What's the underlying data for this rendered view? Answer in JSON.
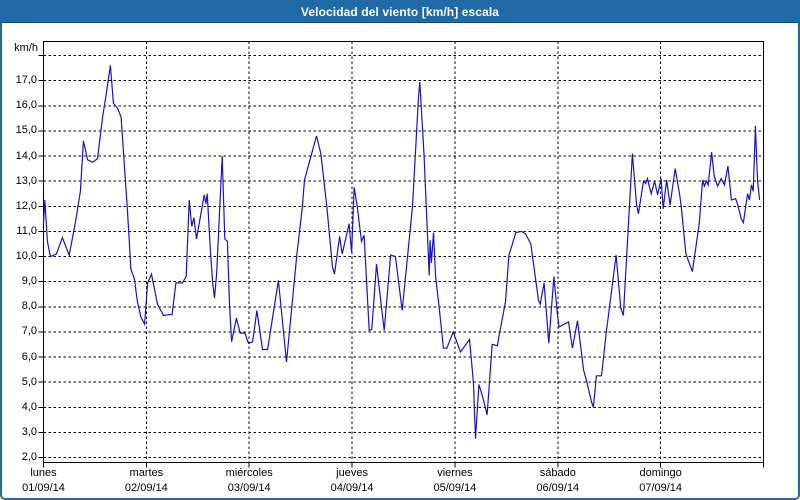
{
  "window": {
    "title": "Velocidad del viento [km/h] escala",
    "title_bar_color": "#1f6aa7",
    "border_color": "#1f6aa7",
    "background_color": "#ffffff"
  },
  "chart_data": {
    "type": "line",
    "title": "Velocidad del viento [km/h] escala",
    "ylabel": "km/h",
    "xlabel": "",
    "line_color": "#1414c8",
    "grid_color": "#000000",
    "grid_style": "dashed",
    "legend": "none",
    "ylim": [
      2,
      18
    ],
    "ytick_step": 1,
    "ytick_labels": [
      "2,0",
      "3,0",
      "4,0",
      "5,0",
      "6,0",
      "7,0",
      "8,0",
      "9,0",
      "10,0",
      "11,0",
      "12,0",
      "13,0",
      "14,0",
      "15,0",
      "16,0",
      "17,0"
    ],
    "x_days": [
      {
        "name": "lunes",
        "date": "01/09/14"
      },
      {
        "name": "martes",
        "date": "02/09/14"
      },
      {
        "name": "miércoles",
        "date": "03/09/14"
      },
      {
        "name": "jueves",
        "date": "04/09/14"
      },
      {
        "name": "viernes",
        "date": "05/09/14"
      },
      {
        "name": "sábado",
        "date": "06/09/14"
      },
      {
        "name": "domingo",
        "date": "07/09/14"
      }
    ],
    "x_unit": "hours_since_monday_00h",
    "x_range_hours": [
      0,
      168
    ],
    "points": [
      [
        0,
        11.3
      ],
      [
        0.3,
        12.25
      ],
      [
        0.9,
        10.6
      ],
      [
        1.6,
        10.0
      ],
      [
        3.0,
        10.1
      ],
      [
        4.4,
        10.75
      ],
      [
        6.0,
        10.05
      ],
      [
        7.5,
        11.4
      ],
      [
        8.6,
        12.6
      ],
      [
        9.3,
        14.6
      ],
      [
        10.3,
        13.85
      ],
      [
        11.5,
        13.75
      ],
      [
        12.6,
        13.9
      ],
      [
        13.8,
        15.55
      ],
      [
        14.5,
        16.3
      ],
      [
        15.6,
        17.6
      ],
      [
        16.3,
        16.1
      ],
      [
        17.3,
        15.9
      ],
      [
        18.1,
        15.55
      ],
      [
        19.6,
        11.8
      ],
      [
        20.4,
        9.5
      ],
      [
        21.2,
        9.1
      ],
      [
        21.9,
        8.2
      ],
      [
        22.7,
        7.6
      ],
      [
        23.6,
        7.3
      ],
      [
        24.3,
        8.95
      ],
      [
        25.2,
        9.3
      ],
      [
        26.6,
        8.1
      ],
      [
        28.0,
        7.65
      ],
      [
        30.0,
        7.7
      ],
      [
        30.9,
        8.95
      ],
      [
        32.4,
        8.95
      ],
      [
        33.3,
        9.2
      ],
      [
        34.0,
        12.25
      ],
      [
        34.6,
        11.2
      ],
      [
        35.1,
        11.55
      ],
      [
        35.7,
        10.7
      ],
      [
        37.5,
        12.45
      ],
      [
        37.9,
        12.1
      ],
      [
        38.2,
        12.5
      ],
      [
        39.0,
        10.1
      ],
      [
        39.5,
        8.9
      ],
      [
        39.9,
        8.35
      ],
      [
        40.4,
        9.3
      ],
      [
        41.7,
        14.0
      ],
      [
        42.3,
        10.7
      ],
      [
        42.9,
        10.6
      ],
      [
        43.4,
        8.1
      ],
      [
        43.9,
        6.6
      ],
      [
        45.0,
        7.55
      ],
      [
        45.9,
        6.95
      ],
      [
        47.0,
        6.95
      ],
      [
        47.8,
        6.55
      ],
      [
        48.8,
        6.6
      ],
      [
        49.8,
        7.85
      ],
      [
        51.1,
        6.3
      ],
      [
        52.3,
        6.3
      ],
      [
        54.8,
        9.05
      ],
      [
        56.7,
        5.8
      ],
      [
        59.1,
        10.05
      ],
      [
        60.4,
        12.0
      ],
      [
        60.9,
        13.05
      ],
      [
        62.5,
        14.05
      ],
      [
        63.7,
        14.8
      ],
      [
        64.7,
        14.1
      ],
      [
        66.1,
        12.0
      ],
      [
        67.4,
        9.6
      ],
      [
        67.9,
        9.3
      ],
      [
        69.1,
        10.8
      ],
      [
        69.7,
        10.1
      ],
      [
        71.3,
        11.3
      ],
      [
        71.9,
        10.15
      ],
      [
        72.5,
        12.75
      ],
      [
        73.2,
        12.0
      ],
      [
        74.2,
        10.6
      ],
      [
        74.8,
        10.85
      ],
      [
        76.0,
        7.05
      ],
      [
        76.6,
        7.1
      ],
      [
        77.7,
        9.7
      ],
      [
        79.5,
        7.05
      ],
      [
        81.0,
        10.05
      ],
      [
        82.1,
        10.0
      ],
      [
        83.7,
        7.85
      ],
      [
        86.1,
        12.0
      ],
      [
        87.5,
        16.35
      ],
      [
        87.8,
        16.95
      ],
      [
        88.8,
        14.0
      ],
      [
        90.0,
        9.25
      ],
      [
        90.2,
        10.65
      ],
      [
        90.5,
        9.75
      ],
      [
        91.0,
        10.95
      ],
      [
        91.5,
        9.2
      ],
      [
        92.3,
        8.0
      ],
      [
        93.3,
        6.35
      ],
      [
        94.1,
        6.35
      ],
      [
        95.6,
        7.0
      ],
      [
        97.3,
        6.2
      ],
      [
        99.4,
        6.7
      ],
      [
        100.3,
        5.0
      ],
      [
        100.8,
        2.75
      ],
      [
        101.6,
        4.9
      ],
      [
        102.5,
        4.4
      ],
      [
        103.5,
        3.7
      ],
      [
        104.7,
        6.5
      ],
      [
        105.9,
        6.45
      ],
      [
        106.3,
        6.85
      ],
      [
        107.8,
        8.2
      ],
      [
        108.6,
        10.05
      ],
      [
        109.4,
        10.5
      ],
      [
        110.2,
        10.95
      ],
      [
        111.5,
        11.0
      ],
      [
        112.5,
        10.9
      ],
      [
        113.7,
        10.5
      ],
      [
        115.5,
        8.25
      ],
      [
        115.9,
        8.1
      ],
      [
        116.8,
        8.95
      ],
      [
        117.9,
        6.55
      ],
      [
        119.1,
        9.2
      ],
      [
        119.9,
        7.7
      ],
      [
        120.3,
        7.2
      ],
      [
        122.5,
        7.4
      ],
      [
        123.4,
        6.35
      ],
      [
        124.6,
        7.45
      ],
      [
        126.0,
        5.5
      ],
      [
        126.8,
        5.0
      ],
      [
        127.9,
        4.2
      ],
      [
        128.3,
        4.0
      ],
      [
        129.0,
        5.25
      ],
      [
        130.2,
        5.25
      ],
      [
        131.3,
        6.95
      ],
      [
        133.6,
        10.05
      ],
      [
        134.7,
        7.95
      ],
      [
        135.3,
        7.65
      ],
      [
        135.8,
        9.2
      ],
      [
        137.4,
        14.1
      ],
      [
        137.9,
        13.05
      ],
      [
        138.4,
        12.05
      ],
      [
        138.8,
        11.7
      ],
      [
        140.0,
        13.0
      ],
      [
        140.5,
        12.9
      ],
      [
        140.9,
        13.1
      ],
      [
        141.8,
        12.5
      ],
      [
        142.6,
        13.0
      ],
      [
        143.3,
        12.45
      ],
      [
        144.1,
        13.1
      ],
      [
        144.6,
        11.9
      ],
      [
        145.4,
        13.05
      ],
      [
        146.2,
        12.05
      ],
      [
        147.4,
        13.5
      ],
      [
        148.4,
        12.5
      ],
      [
        148.8,
        12.0
      ],
      [
        149.9,
        10.1
      ],
      [
        151.4,
        9.4
      ],
      [
        153.0,
        11.3
      ],
      [
        153.8,
        13.05
      ],
      [
        154.2,
        12.8
      ],
      [
        154.7,
        13.0
      ],
      [
        155.1,
        12.85
      ],
      [
        155.9,
        14.15
      ],
      [
        156.5,
        13.2
      ],
      [
        157.3,
        12.8
      ],
      [
        158.1,
        13.1
      ],
      [
        158.9,
        12.85
      ],
      [
        159.7,
        13.6
      ],
      [
        160.5,
        12.25
      ],
      [
        161.5,
        12.3
      ],
      [
        162.0,
        12.05
      ],
      [
        162.8,
        11.5
      ],
      [
        163.3,
        11.35
      ],
      [
        164.3,
        12.5
      ],
      [
        164.7,
        12.25
      ],
      [
        165.2,
        12.85
      ],
      [
        165.6,
        12.6
      ],
      [
        165.9,
        14.1
      ],
      [
        166.1,
        15.2
      ],
      [
        166.6,
        13.05
      ],
      [
        167.1,
        12.25
      ]
    ]
  }
}
